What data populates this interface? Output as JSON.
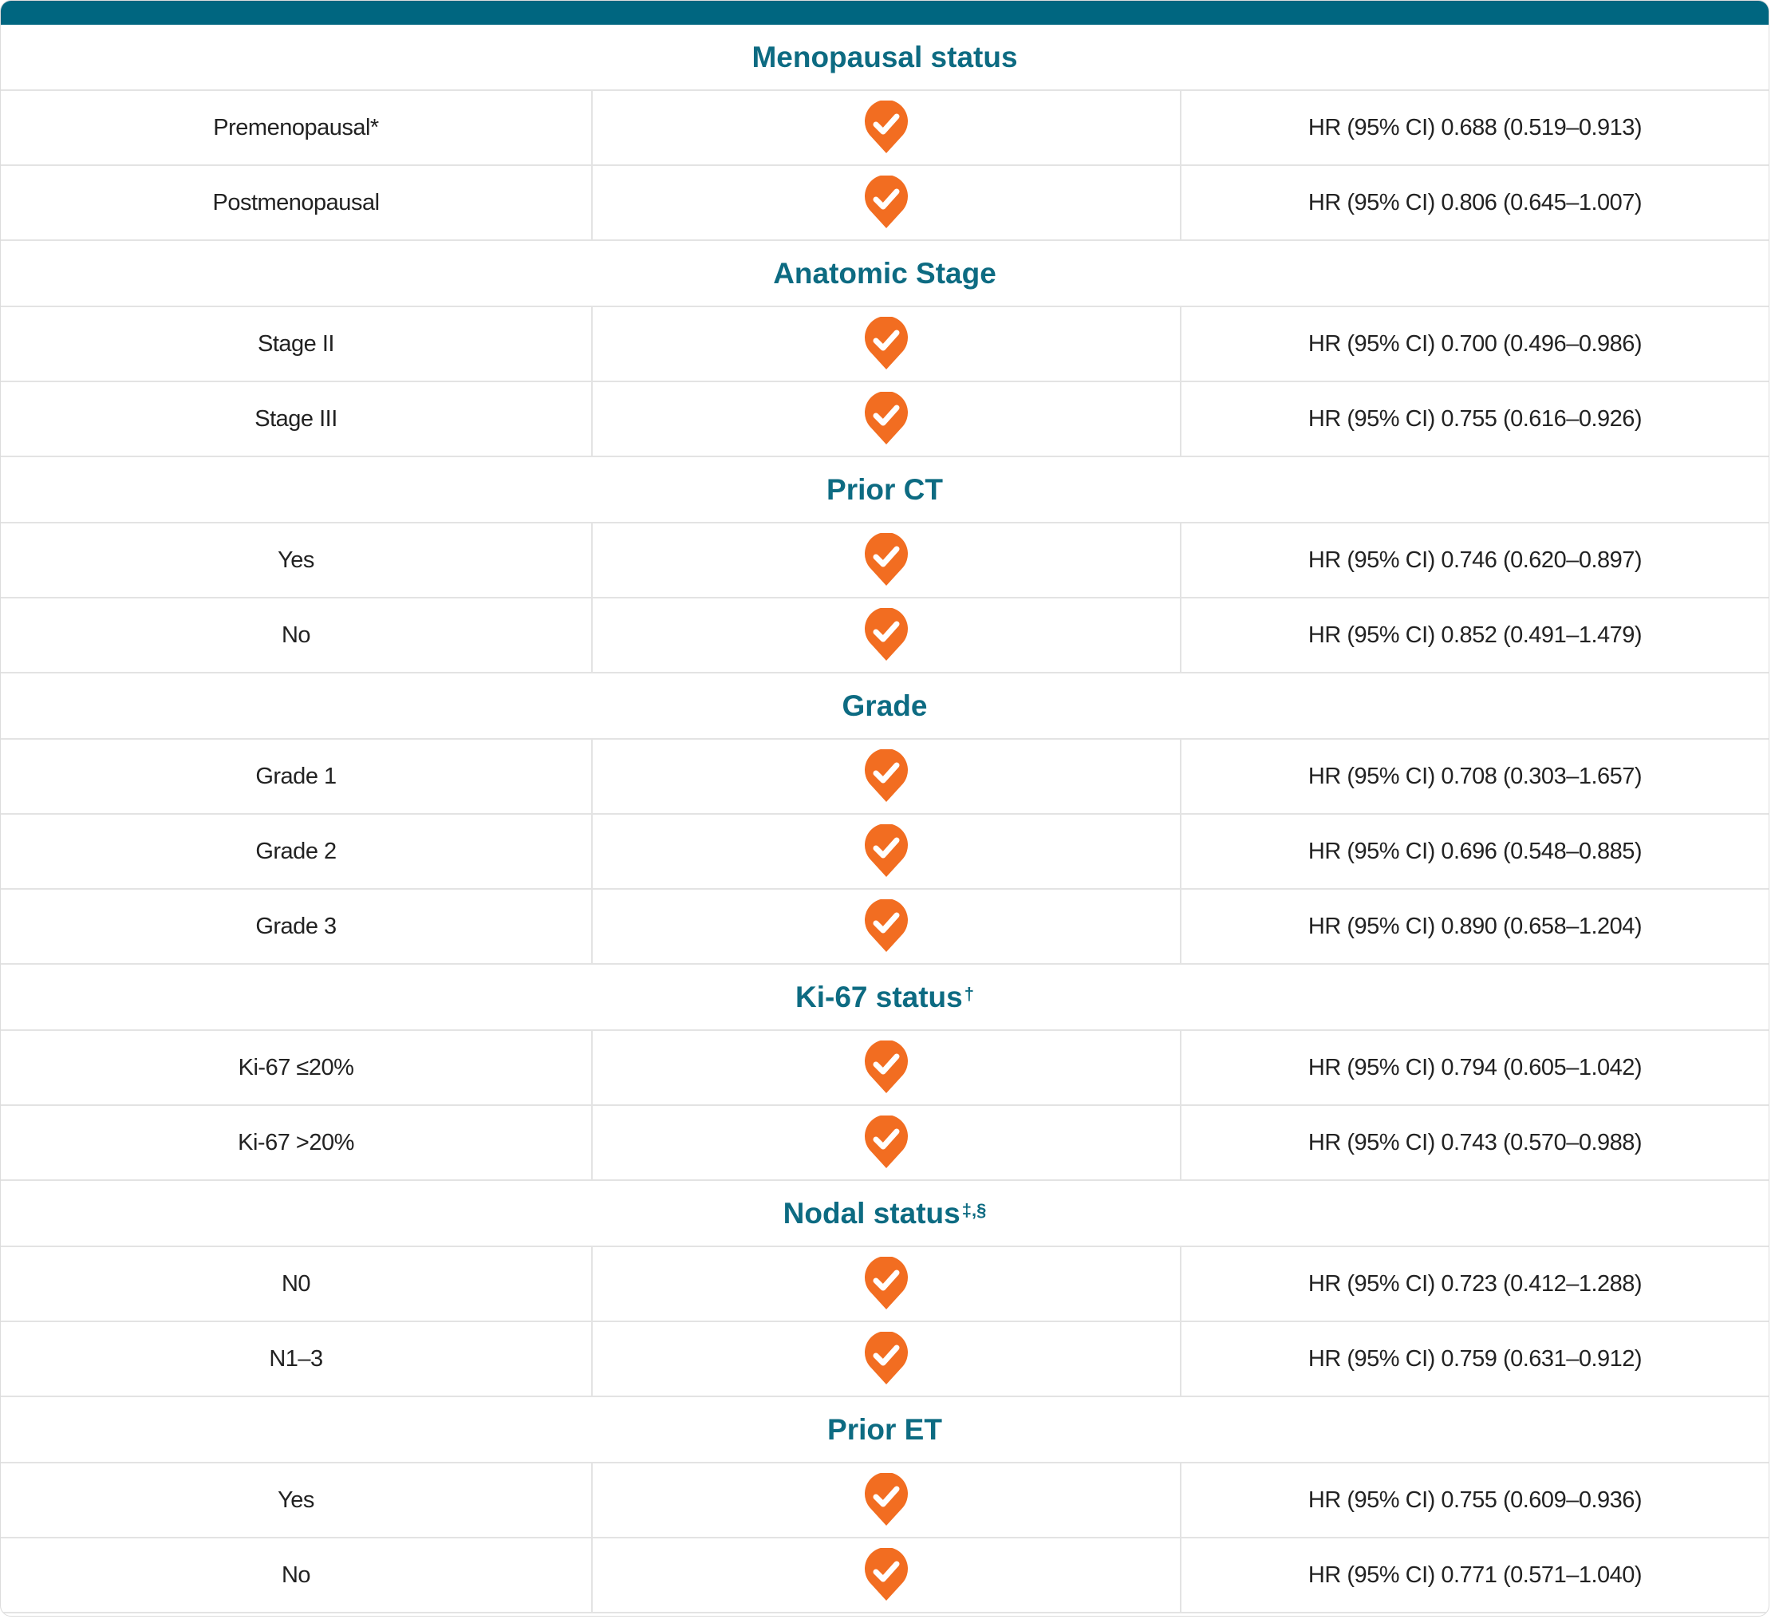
{
  "colors": {
    "header_bar": "#006680",
    "section_title": "#0d6b82",
    "check_badge": "#f26d21",
    "divider": "#e3e3e3"
  },
  "icon": "check-badge-icon",
  "sections": [
    {
      "title": "Menopausal status",
      "sup": "",
      "rows": [
        {
          "label": "Premenopausal*",
          "hr": "HR (95% CI) 0.688 (0.519–0.913)"
        },
        {
          "label": "Postmenopausal",
          "hr": "HR (95% CI) 0.806 (0.645–1.007)"
        }
      ]
    },
    {
      "title": "Anatomic Stage",
      "sup": "",
      "rows": [
        {
          "label": "Stage II",
          "hr": "HR (95% CI) 0.700 (0.496–0.986)"
        },
        {
          "label": "Stage III",
          "hr": "HR (95% CI) 0.755 (0.616–0.926)"
        }
      ]
    },
    {
      "title": "Prior CT",
      "sup": "",
      "rows": [
        {
          "label": "Yes",
          "hr": "HR (95% CI) 0.746 (0.620–0.897)"
        },
        {
          "label": "No",
          "hr": "HR (95% CI) 0.852 (0.491–1.479)"
        }
      ]
    },
    {
      "title": "Grade",
      "sup": "",
      "rows": [
        {
          "label": "Grade 1",
          "hr": "HR (95% CI) 0.708 (0.303–1.657)"
        },
        {
          "label": "Grade 2",
          "hr": "HR (95% CI) 0.696 (0.548–0.885)"
        },
        {
          "label": "Grade 3",
          "hr": "HR (95% CI) 0.890 (0.658–1.204)"
        }
      ]
    },
    {
      "title": "Ki-67 status",
      "sup": "†",
      "rows": [
        {
          "label": "Ki-67 ≤20%",
          "hr": "HR (95% CI) 0.794 (0.605–1.042)"
        },
        {
          "label": "Ki-67 >20%",
          "hr": "HR (95% CI) 0.743 (0.570–0.988)"
        }
      ]
    },
    {
      "title": "Nodal status",
      "sup": "‡,§",
      "rows": [
        {
          "label": "N0",
          "hr": "HR (95% CI) 0.723 (0.412–1.288)"
        },
        {
          "label": "N1–3",
          "hr": "HR (95% CI) 0.759 (0.631–0.912)"
        }
      ]
    },
    {
      "title": "Prior ET",
      "sup": "",
      "rows": [
        {
          "label": "Yes",
          "hr": "HR (95% CI) 0.755 (0.609–0.936)"
        },
        {
          "label": "No",
          "hr": "HR (95% CI) 0.771 (0.571–1.040)"
        }
      ]
    }
  ]
}
